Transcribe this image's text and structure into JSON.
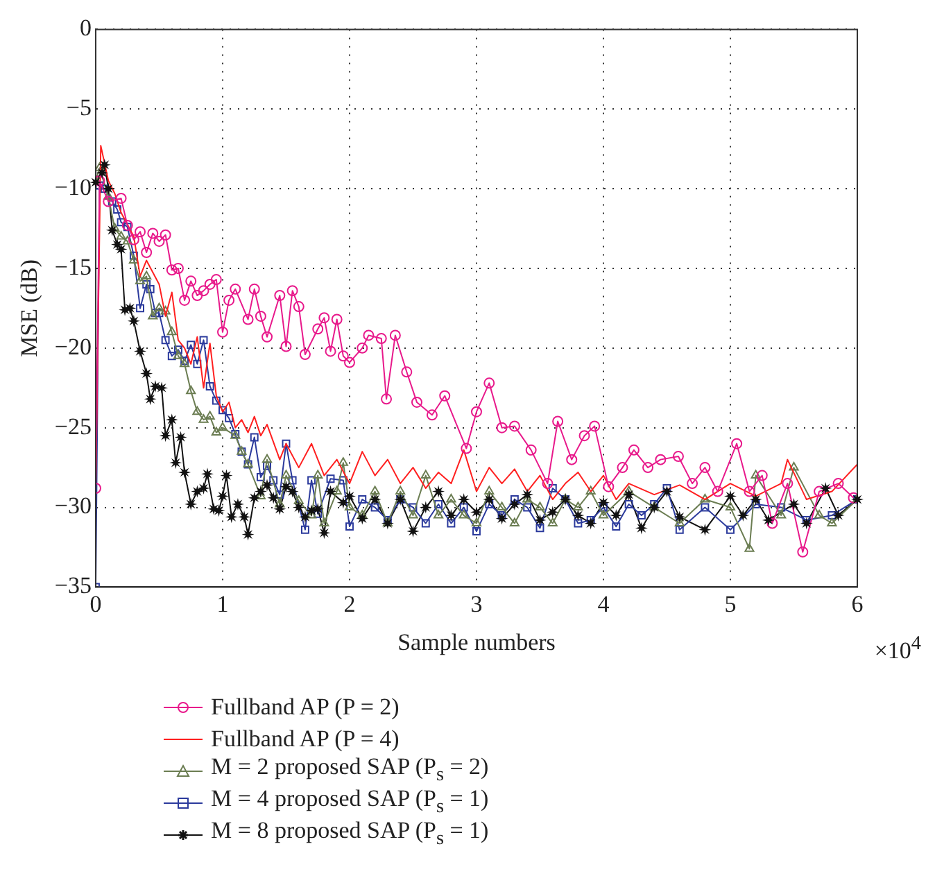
{
  "chart_data": {
    "type": "line",
    "xlabel": "Sample numbers",
    "ylabel": "MSE (dB)",
    "xlim": [
      0,
      6
    ],
    "xticks": [
      0,
      1,
      2,
      3,
      4,
      5,
      6
    ],
    "ylim": [
      -35,
      0
    ],
    "yticks": [
      -35,
      -30,
      -25,
      -20,
      -15,
      -10,
      -5,
      0
    ],
    "grid": true,
    "legend": "bottom",
    "annotations": [
      "×10$^{4}$"
    ],
    "series": [
      {
        "name": "Fullband AP (P = 2)",
        "color": "#e8198b",
        "marker": "circle",
        "x": [
          0,
          0.03,
          0.1,
          0.2,
          0.25,
          0.3,
          0.35,
          0.4,
          0.45,
          0.5,
          0.55,
          0.6,
          0.65,
          0.7,
          0.75,
          0.8,
          0.85,
          0.9,
          0.95,
          1.0,
          1.05,
          1.1,
          1.2,
          1.25,
          1.3,
          1.35,
          1.45,
          1.5,
          1.55,
          1.6,
          1.65,
          1.75,
          1.8,
          1.85,
          1.9,
          1.95,
          2.0,
          2.1,
          2.15,
          2.25,
          2.29,
          2.36,
          2.45,
          2.53,
          2.65,
          2.75,
          2.92,
          3.0,
          3.1,
          3.2,
          3.3,
          3.43,
          3.56,
          3.64,
          3.75,
          3.85,
          3.93,
          4.04,
          4.15,
          4.24,
          4.35,
          4.45,
          4.59,
          4.7,
          4.8,
          4.9,
          5.05,
          5.15,
          5.25,
          5.33,
          5.45,
          5.57,
          5.7,
          5.85,
          5.97
        ],
        "values": [
          -28.8,
          -9.5,
          -10.8,
          -10.6,
          -12.3,
          -13.2,
          -12.7,
          -14,
          -12.8,
          -13.3,
          -12.9,
          -15.1,
          -15,
          -17,
          -15.8,
          -16.7,
          -16.4,
          -16,
          -15.7,
          -19,
          -17,
          -16.3,
          -18.2,
          -16.3,
          -18,
          -19.3,
          -16.7,
          -19.9,
          -16.4,
          -17.4,
          -20.4,
          -18.8,
          -18.1,
          -20.2,
          -18.2,
          -20.5,
          -20.9,
          -20,
          -19.2,
          -19.4,
          -23.2,
          -19.2,
          -21.5,
          -23.4,
          -24.2,
          -23,
          -26.3,
          -24,
          -22.2,
          -25,
          -24.9,
          -26.4,
          -28.5,
          -24.6,
          -27,
          -25.5,
          -24.9,
          -28.7,
          -27.5,
          -26.4,
          -27.5,
          -27,
          -26.8,
          -28.5,
          -27.5,
          -29,
          -26,
          -29,
          -28,
          -31,
          -28.5,
          -32.8,
          -29,
          -28.5,
          -29.4
        ]
      },
      {
        "name": "Fullband AP (P = 4)",
        "color": "#ff2020",
        "marker": "none",
        "x": [
          0,
          0.04,
          0.1,
          0.15,
          0.2,
          0.3,
          0.35,
          0.4,
          0.5,
          0.55,
          0.6,
          0.65,
          0.7,
          0.75,
          0.8,
          0.85,
          0.9,
          0.95,
          1.0,
          1.05,
          1.1,
          1.15,
          1.2,
          1.25,
          1.3,
          1.35,
          1.45,
          1.5,
          1.6,
          1.7,
          1.8,
          1.9,
          2.0,
          2.1,
          2.2,
          2.3,
          2.4,
          2.5,
          2.6,
          2.7,
          2.8,
          2.9,
          3.0,
          3.1,
          3.2,
          3.3,
          3.4,
          3.5,
          3.6,
          3.7,
          3.8,
          3.9,
          4.0,
          4.1,
          4.2,
          4.4,
          4.6,
          4.8,
          5.0,
          5.2,
          5.4,
          5.45,
          5.6,
          5.8,
          6.0
        ],
        "values": [
          -28.8,
          -7.3,
          -9.5,
          -10.3,
          -11.5,
          -13,
          -15.5,
          -14.5,
          -16,
          -18,
          -16.5,
          -19.5,
          -20,
          -21,
          -19.3,
          -22.5,
          -19.7,
          -23,
          -24,
          -23.4,
          -25,
          -24.5,
          -25.3,
          -24.3,
          -25.5,
          -24.8,
          -27,
          -26,
          -27.5,
          -26,
          -28,
          -27,
          -28.5,
          -26.5,
          -28,
          -27,
          -28.5,
          -27.5,
          -28.8,
          -27.8,
          -28.5,
          -26.4,
          -29,
          -27.5,
          -28.5,
          -27.6,
          -29,
          -28,
          -29.5,
          -28.5,
          -27.8,
          -29,
          -28,
          -29.5,
          -28.5,
          -29.2,
          -28.6,
          -29.5,
          -28.5,
          -29.3,
          -28.5,
          -27,
          -29.5,
          -29,
          -27.3
        ]
      },
      {
        "name": "M = 2 proposed SAP (P$_{s}$ = 2)",
        "color": "#6b7d52",
        "marker": "triangle",
        "x": [
          0,
          0.03,
          0.1,
          0.15,
          0.2,
          0.25,
          0.3,
          0.35,
          0.4,
          0.45,
          0.5,
          0.55,
          0.6,
          0.65,
          0.7,
          0.75,
          0.8,
          0.85,
          0.9,
          0.95,
          1.0,
          1.1,
          1.15,
          1.2,
          1.3,
          1.35,
          1.45,
          1.5,
          1.6,
          1.7,
          1.75,
          1.8,
          1.9,
          1.95,
          2.0,
          2.1,
          2.2,
          2.3,
          2.4,
          2.5,
          2.6,
          2.7,
          2.8,
          2.9,
          3.0,
          3.1,
          3.2,
          3.3,
          3.4,
          3.5,
          3.6,
          3.7,
          3.8,
          3.9,
          4.0,
          4.2,
          4.4,
          4.6,
          4.8,
          5.0,
          5.15,
          5.2,
          5.4,
          5.5,
          5.7,
          5.8,
          6.0
        ],
        "values": [
          -9.5,
          -8.7,
          -10.5,
          -12.5,
          -13,
          -13.3,
          -14.5,
          -15.8,
          -15.5,
          -18,
          -17.5,
          -17.7,
          -19,
          -20.5,
          -21,
          -22.7,
          -24,
          -24.5,
          -24.3,
          -25.3,
          -25,
          -25.5,
          -26.5,
          -27.3,
          -29.3,
          -27,
          -29.8,
          -28,
          -29.6,
          -30.5,
          -28,
          -31,
          -29,
          -27.2,
          -30,
          -30.5,
          -29,
          -31,
          -29,
          -30.5,
          -28,
          -30.5,
          -29.5,
          -30.5,
          -31,
          -29,
          -30,
          -31,
          -29.5,
          -30,
          -31,
          -29.5,
          -30,
          -29,
          -30.5,
          -29,
          -30,
          -31,
          -29.5,
          -30,
          -32.6,
          -28,
          -30.5,
          -27.5,
          -30.5,
          -31,
          -29.5
        ]
      },
      {
        "name": "M = 4 proposed SAP (P$_{s}$ = 1)",
        "color": "#2b3a9c",
        "marker": "square",
        "x": [
          0,
          0.03,
          0.07,
          0.13,
          0.17,
          0.2,
          0.25,
          0.3,
          0.35,
          0.4,
          0.43,
          0.47,
          0.5,
          0.55,
          0.6,
          0.65,
          0.7,
          0.75,
          0.8,
          0.85,
          0.9,
          0.95,
          1.0,
          1.05,
          1.1,
          1.15,
          1.2,
          1.25,
          1.3,
          1.35,
          1.4,
          1.45,
          1.5,
          1.55,
          1.65,
          1.7,
          1.75,
          1.85,
          1.95,
          2.0,
          2.1,
          2.2,
          2.3,
          2.4,
          2.5,
          2.6,
          2.7,
          2.8,
          2.9,
          3.0,
          3.1,
          3.2,
          3.3,
          3.4,
          3.5,
          3.6,
          3.7,
          3.8,
          3.9,
          4.0,
          4.1,
          4.2,
          4.3,
          4.4,
          4.5,
          4.6,
          4.8,
          5.0,
          5.2,
          5.4,
          5.6,
          5.8,
          6.0
        ],
        "values": [
          -35,
          -9.8,
          -10,
          -10.8,
          -11.3,
          -12.1,
          -12.4,
          -14.2,
          -17.5,
          -16,
          -16.3,
          -17.8,
          -17.8,
          -19.5,
          -20.5,
          -20.1,
          -20.8,
          -19.8,
          -21,
          -19.5,
          -22.4,
          -23.3,
          -23.9,
          -24.4,
          -25.4,
          -26.5,
          -27.3,
          -25.6,
          -28.1,
          -27.4,
          -28.3,
          -29.2,
          -26,
          -28.3,
          -31.4,
          -28.3,
          -30.4,
          -28.2,
          -28.3,
          -31.2,
          -29.5,
          -30,
          -30.8,
          -29.5,
          -30,
          -31,
          -29.8,
          -31,
          -30,
          -31.5,
          -29.8,
          -30.5,
          -29.5,
          -30,
          -31.3,
          -28.8,
          -29.5,
          -31,
          -30.8,
          -30,
          -31.2,
          -29.8,
          -30.5,
          -29.8,
          -28.8,
          -31.4,
          -30,
          -31.4,
          -29.8,
          -30,
          -30.8,
          -30.5,
          -29.5
        ]
      },
      {
        "name": "M = 8 proposed SAP (P$_{s}$ = 1)",
        "color": "#111111",
        "marker": "star",
        "x": [
          0,
          0.05,
          0.07,
          0.1,
          0.13,
          0.17,
          0.2,
          0.23,
          0.27,
          0.3,
          0.35,
          0.4,
          0.43,
          0.47,
          0.52,
          0.55,
          0.6,
          0.63,
          0.67,
          0.7,
          0.75,
          0.8,
          0.85,
          0.88,
          0.93,
          0.97,
          1.0,
          1.03,
          1.07,
          1.12,
          1.17,
          1.2,
          1.25,
          1.3,
          1.35,
          1.4,
          1.45,
          1.5,
          1.55,
          1.6,
          1.65,
          1.7,
          1.75,
          1.8,
          1.85,
          1.95,
          2.0,
          2.1,
          2.2,
          2.3,
          2.4,
          2.5,
          2.6,
          2.7,
          2.8,
          2.9,
          3.0,
          3.1,
          3.2,
          3.3,
          3.4,
          3.5,
          3.6,
          3.7,
          3.8,
          3.9,
          4.0,
          4.1,
          4.2,
          4.3,
          4.4,
          4.5,
          4.6,
          4.8,
          5.0,
          5.1,
          5.2,
          5.3,
          5.5,
          5.6,
          5.75,
          5.85,
          6.0
        ],
        "values": [
          -9.6,
          -9,
          -8.5,
          -10,
          -12.6,
          -13.5,
          -13.8,
          -17.6,
          -17.5,
          -18.3,
          -20.2,
          -21.6,
          -23.2,
          -22.4,
          -22.5,
          -25.5,
          -24.5,
          -27.2,
          -25.6,
          -27.8,
          -29.8,
          -29,
          -28.8,
          -27.9,
          -30.1,
          -30.2,
          -29.3,
          -28,
          -30.6,
          -29.8,
          -30.6,
          -31.7,
          -29.4,
          -29,
          -28.6,
          -29.4,
          -30.1,
          -28.7,
          -29,
          -30,
          -30.6,
          -30.2,
          -30.1,
          -31.6,
          -29,
          -29.7,
          -29.3,
          -30.7,
          -29.5,
          -31,
          -29.5,
          -31.5,
          -30,
          -29,
          -30.5,
          -29.5,
          -30.3,
          -29.5,
          -30.7,
          -29.8,
          -29.2,
          -30.8,
          -30.3,
          -29.5,
          -30.5,
          -31,
          -29.7,
          -30.5,
          -29.2,
          -31.3,
          -30,
          -29,
          -30.6,
          -31.4,
          -29.3,
          -30.5,
          -29.5,
          -30.8,
          -29.8,
          -31,
          -28.8,
          -30.5,
          -29.5
        ]
      }
    ]
  }
}
